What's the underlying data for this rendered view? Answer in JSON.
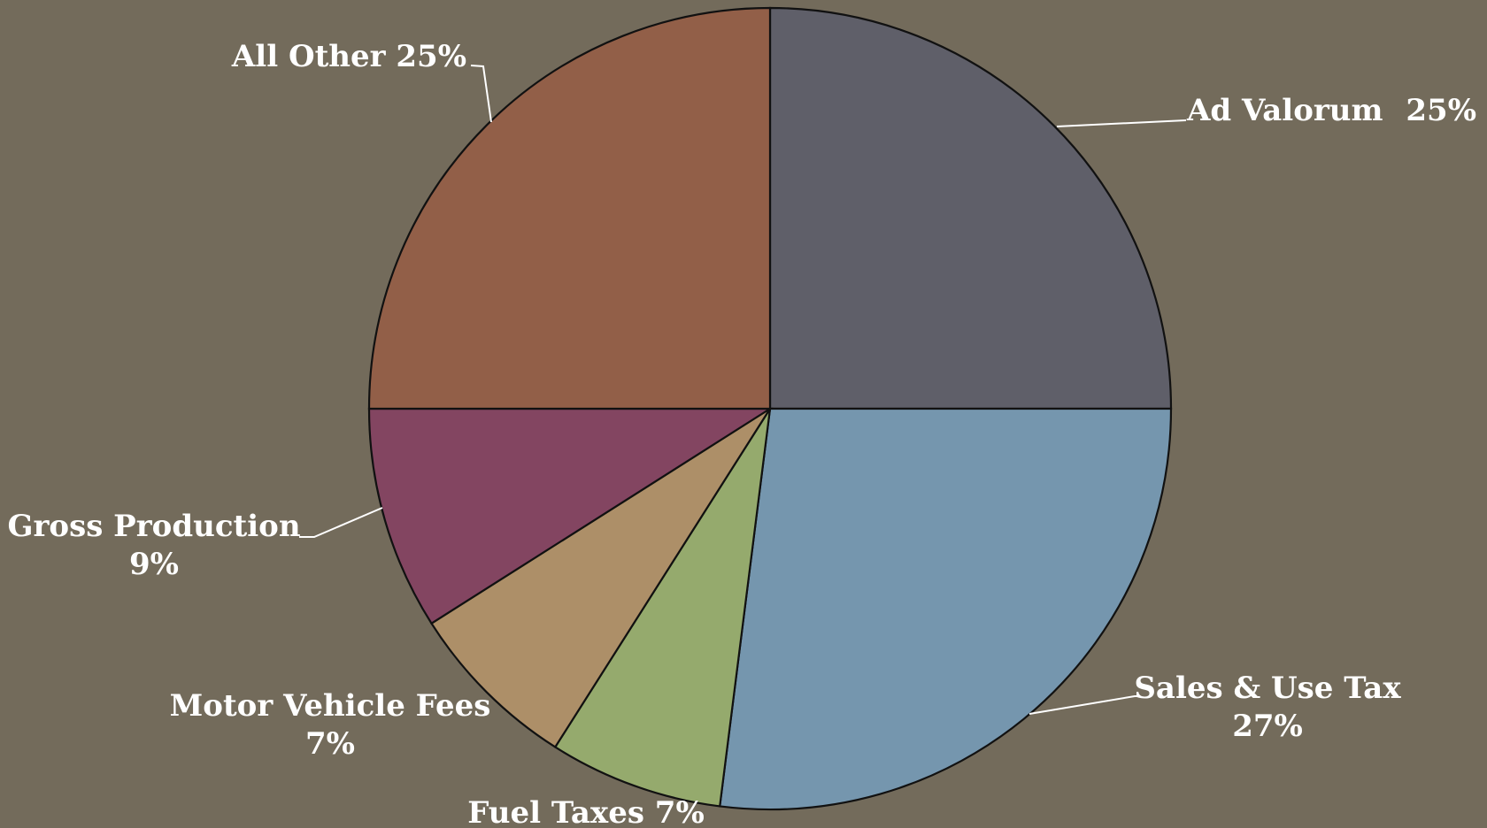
{
  "chart_data": {
    "type": "pie",
    "title": "",
    "start_angle_deg": 0,
    "direction": "clockwise",
    "slices": [
      {
        "label": "Ad Valorum",
        "value": 25,
        "value_label": "25%",
        "color": "#5f5f69"
      },
      {
        "label": "Sales & Use Tax",
        "value": 27,
        "value_label": "27%",
        "color": "#7596ae"
      },
      {
        "label": "Fuel Taxes",
        "value": 7,
        "value_label": "7%",
        "color": "#95aa6d"
      },
      {
        "label": "Motor Vehicle Fees",
        "value": 7,
        "value_label": "7%",
        "color": "#ad8f68"
      },
      {
        "label": "Gross Production",
        "value": 9,
        "value_label": "9%",
        "color": "#834561"
      },
      {
        "label": "All Other",
        "value": 25,
        "value_label": "25%",
        "color": "#925f48"
      }
    ],
    "legend": "none",
    "colors": {
      "background": "#736b5b",
      "outline": "#111111",
      "label_text": "#ffffff"
    }
  }
}
